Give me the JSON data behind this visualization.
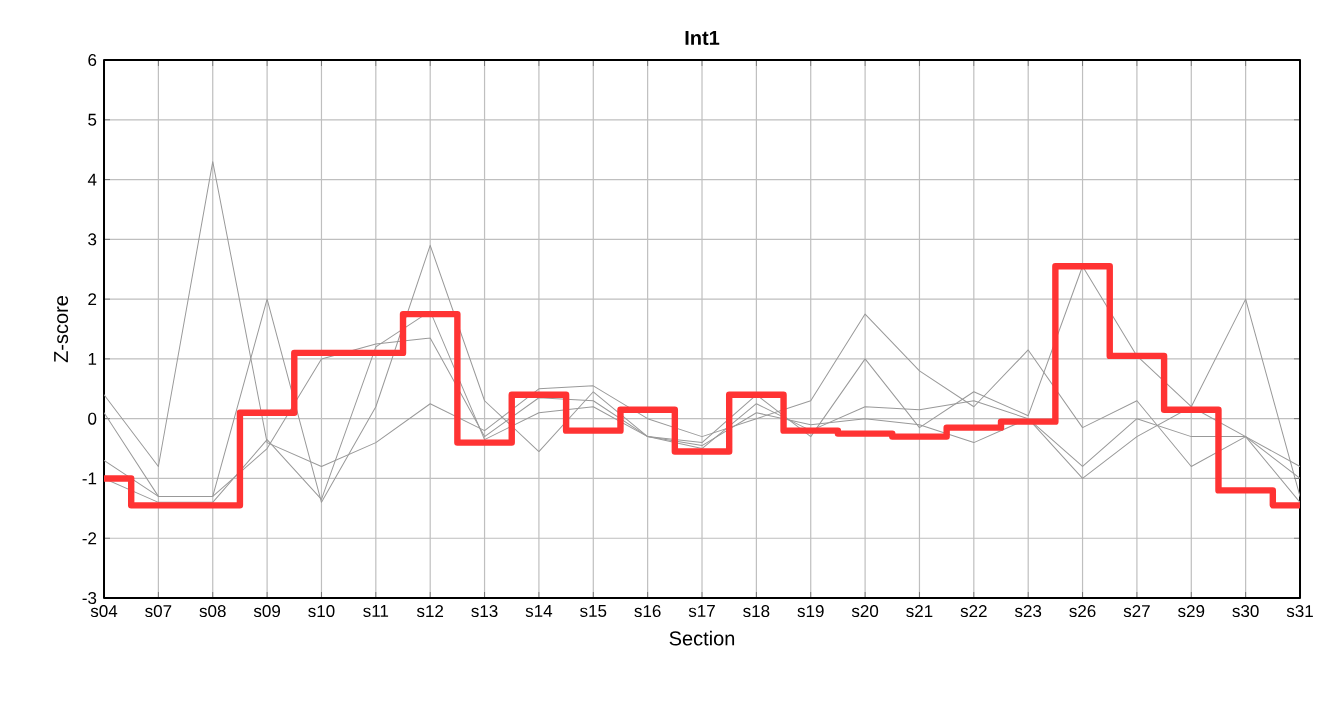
{
  "chart_data": {
    "type": "line",
    "title": "Int1",
    "xlabel": "Section",
    "ylabel": "Z-score",
    "categories": [
      "s04",
      "s07",
      "s08",
      "s09",
      "s10",
      "s11",
      "s12",
      "s13",
      "s14",
      "s15",
      "s16",
      "s17",
      "s18",
      "s19",
      "s20",
      "s21",
      "s22",
      "s23",
      "s26",
      "s27",
      "s29",
      "s30",
      "s31"
    ],
    "ylim": [
      -3,
      6
    ],
    "yticks": [
      -3,
      -2,
      -1,
      0,
      1,
      2,
      3,
      4,
      5,
      6
    ],
    "grid": true,
    "marker": "none",
    "line_style": "solid",
    "series": [
      {
        "color": "#999999",
        "values": [
          0.4,
          -0.8,
          4.3,
          -0.4,
          -0.8,
          -0.4,
          0.25,
          -0.2,
          0.5,
          0.55,
          0.0,
          -0.3,
          0.0,
          0.3,
          1.75,
          0.8,
          0.2,
          1.15,
          -0.15,
          0.3,
          -0.8,
          -0.3,
          -1.0
        ]
      },
      {
        "color": "#999999",
        "values": [
          0.1,
          -1.3,
          -1.3,
          2.0,
          -1.4,
          0.2,
          2.9,
          0.3,
          -0.55,
          0.45,
          -0.3,
          -0.4,
          0.4,
          -0.3,
          1.0,
          -0.15,
          0.45,
          0.05,
          2.55,
          1.05,
          0.2,
          2.0,
          -1.3
        ]
      },
      {
        "color": "#999999",
        "values": [
          -0.7,
          -1.3,
          -1.3,
          -0.5,
          1.0,
          1.25,
          1.35,
          -0.3,
          0.35,
          0.3,
          -0.3,
          -0.45,
          0.1,
          -0.1,
          0.0,
          -0.1,
          -0.4,
          0.0,
          -0.8,
          0.0,
          -0.3,
          -0.3,
          -0.8
        ]
      },
      {
        "color": "#999999",
        "values": [
          -1.0,
          -1.4,
          -1.4,
          -0.35,
          -1.35,
          1.2,
          1.8,
          -0.35,
          0.1,
          0.2,
          -0.3,
          -0.5,
          0.25,
          -0.2,
          0.2,
          0.15,
          0.3,
          0.0,
          -1.0,
          -0.3,
          0.2,
          -0.3,
          -1.4
        ]
      },
      {
        "type": "step",
        "color": "#ff3333",
        "values": [
          -1.0,
          -1.45,
          -1.45,
          0.1,
          1.1,
          1.1,
          1.75,
          -0.4,
          0.4,
          -0.2,
          0.15,
          -0.55,
          0.4,
          -0.2,
          -0.25,
          -0.3,
          -0.15,
          -0.05,
          2.55,
          1.05,
          0.15,
          -1.2,
          -1.45
        ]
      }
    ]
  }
}
